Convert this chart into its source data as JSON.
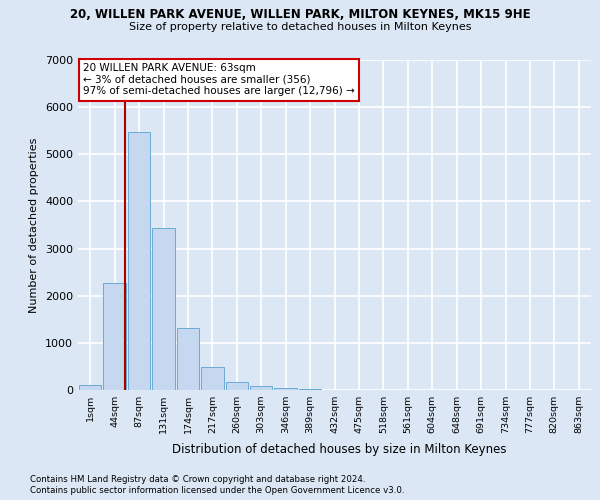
{
  "title": "20, WILLEN PARK AVENUE, WILLEN PARK, MILTON KEYNES, MK15 9HE",
  "subtitle": "Size of property relative to detached houses in Milton Keynes",
  "xlabel": "Distribution of detached houses by size in Milton Keynes",
  "ylabel": "Number of detached properties",
  "bin_labels": [
    "1sqm",
    "44sqm",
    "87sqm",
    "131sqm",
    "174sqm",
    "217sqm",
    "260sqm",
    "303sqm",
    "346sqm",
    "389sqm",
    "432sqm",
    "475sqm",
    "518sqm",
    "561sqm",
    "604sqm",
    "648sqm",
    "691sqm",
    "734sqm",
    "777sqm",
    "820sqm",
    "863sqm"
  ],
  "bar_values": [
    100,
    2280,
    5480,
    3440,
    1310,
    480,
    160,
    90,
    50,
    30,
    0,
    0,
    0,
    0,
    0,
    0,
    0,
    0,
    0,
    0,
    0
  ],
  "bar_color": "#c5d8ef",
  "bar_edgecolor": "#6aaad4",
  "ylim": [
    0,
    7000
  ],
  "yticks": [
    0,
    1000,
    2000,
    3000,
    4000,
    5000,
    6000,
    7000
  ],
  "property_size_sqm": 63,
  "bin_starts": [
    1,
    44,
    87,
    131,
    174,
    217,
    260,
    303,
    346,
    389,
    432,
    475,
    518,
    561,
    604,
    648,
    691,
    734,
    777,
    820,
    863
  ],
  "bin_width": 43,
  "vline_color": "#aa0000",
  "annotation_line1": "20 WILLEN PARK AVENUE: 63sqm",
  "annotation_line2": "← 3% of detached houses are smaller (356)",
  "annotation_line3": "97% of semi-detached houses are larger (12,796) →",
  "annotation_boxcolor": "#ffffff",
  "annotation_edgecolor": "#cc0000",
  "footer1": "Contains HM Land Registry data © Crown copyright and database right 2024.",
  "footer2": "Contains public sector information licensed under the Open Government Licence v3.0.",
  "bg_color": "#dce7f5",
  "grid_color": "#ffffff"
}
